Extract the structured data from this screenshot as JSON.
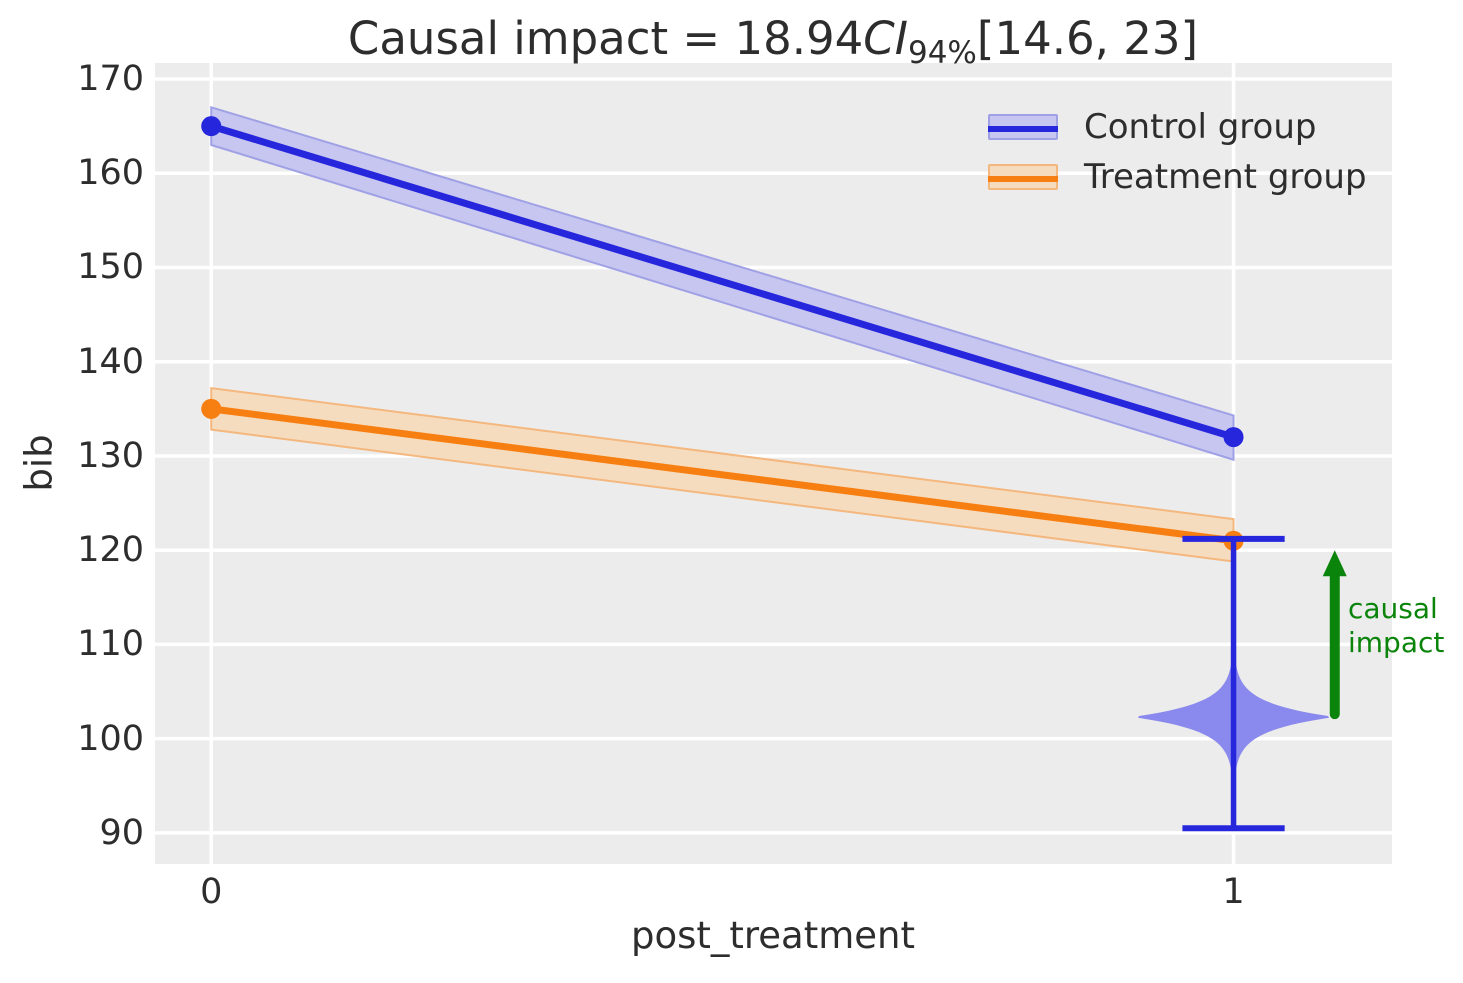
{
  "figure": {
    "background": "#ffffff",
    "text_color": "#2d2d2d"
  },
  "chart_data": {
    "type": "line",
    "title": {
      "prefix": "Causal impact = 18.94",
      "ci_label": "CI",
      "ci_sub": "94%",
      "interval": "[14.6, 23]",
      "full": "Causal impact = 18.94 CI94% [14.6, 23]"
    },
    "impact": {
      "estimate": 18.94,
      "ci_level_pct": 94,
      "ci_lower": 14.6,
      "ci_upper": 23
    },
    "xlabel": "post_treatment",
    "ylabel": "bib",
    "x": [
      0,
      1
    ],
    "series": [
      {
        "name": "Control group",
        "values": [
          165,
          132
        ],
        "ci_lo": [
          163.0,
          129.6
        ],
        "ci_hi": [
          167.0,
          134.3
        ],
        "color": "#2626dd",
        "band_color": "#c6c6f0",
        "band_edge": "#a0a0e6"
      },
      {
        "name": "Treatment group",
        "values": [
          135,
          121
        ],
        "ci_lo": [
          132.8,
          118.8
        ],
        "ci_hi": [
          137.2,
          123.3
        ],
        "color": "#f77f12",
        "band_color": "#f6dcbe",
        "band_edge": "#f4b77e"
      }
    ],
    "violin": {
      "x": 1,
      "center": 102.3,
      "whisker_lo": 90.5,
      "whisker_hi": 121.2,
      "max_halfwidth": 0.099,
      "cap_halfwidth": 0.05,
      "fill": "#8a8aee",
      "line_color": "#2626dd"
    },
    "annotation": {
      "label": "causal\nimpact",
      "color": "#0b840b",
      "arrow_x": 1.099,
      "arrow_from": 102.6,
      "arrow_to": 120.0
    },
    "axes": {
      "xticks": [
        0,
        1
      ],
      "yticks": [
        90,
        100,
        110,
        120,
        130,
        140,
        150,
        160,
        170
      ],
      "xlim": [
        -0.055,
        1.155
      ],
      "ylim": [
        86.7,
        171.7
      ],
      "grid": true,
      "background": "#ececec",
      "grid_color": "#ffffff"
    },
    "legend_position": "upper right"
  }
}
